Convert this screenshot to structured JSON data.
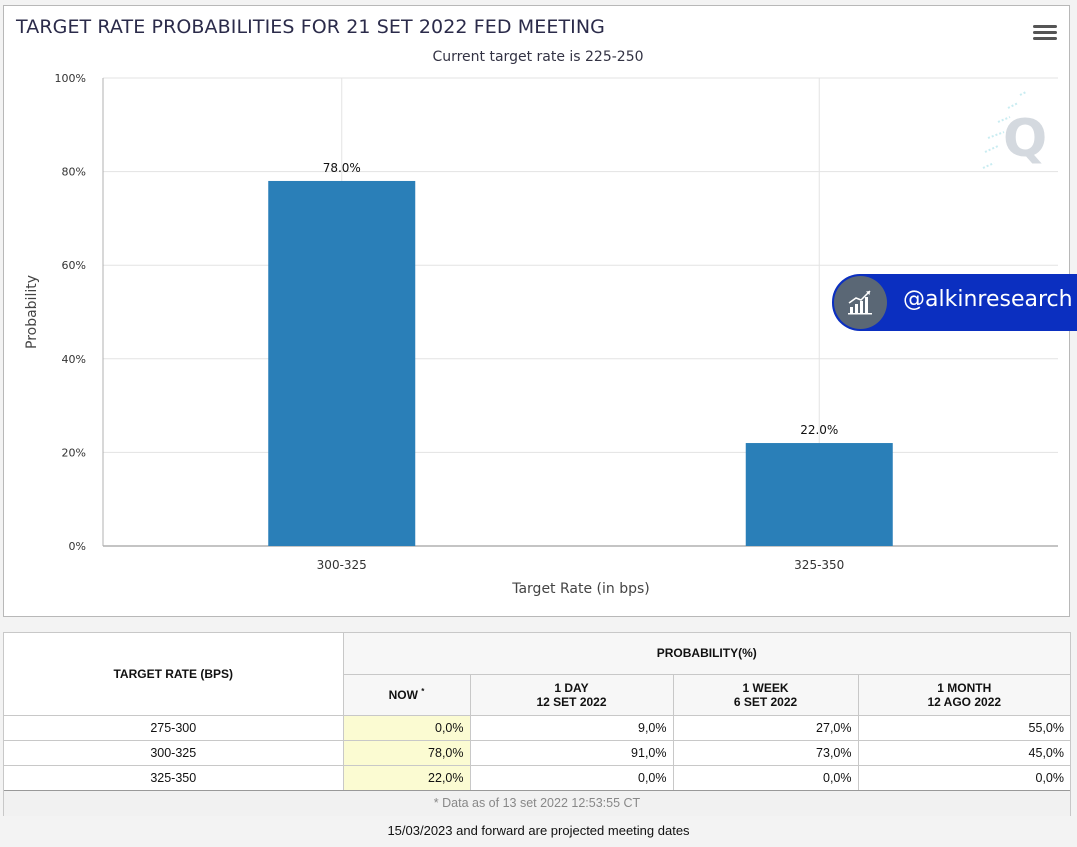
{
  "title": "TARGET RATE PROBABILITIES FOR 21 SET 2022 FED MEETING",
  "watermark": {
    "handle": "@alkinresearch",
    "logo_letter": "Q"
  },
  "chart_data": {
    "type": "bar",
    "title": "TARGET RATE PROBABILITIES FOR 21 SET 2022 FED MEETING",
    "subtitle": "Current target rate is 225-250",
    "categories": [
      "300-325",
      "325-350"
    ],
    "values": [
      78.0,
      22.0
    ],
    "data_labels": [
      "78.0%",
      "22.0%"
    ],
    "xlabel": "Target Rate (in bps)",
    "ylabel": "Probability",
    "ylim": [
      0,
      100
    ],
    "yticks": [
      "0%",
      "20%",
      "40%",
      "60%",
      "80%",
      "100%"
    ],
    "grid": true,
    "bar_color": "#2a7fb8"
  },
  "table": {
    "col_rate_header": "TARGET RATE (BPS)",
    "prob_header": "PROBABILITY(%)",
    "col_now": "NOW",
    "col_now_mark": "*",
    "col_day": "1 DAY",
    "col_day_date": "12 SET 2022",
    "col_week": "1 WEEK",
    "col_week_date": "6 SET 2022",
    "col_month": "1 MONTH",
    "col_month_date": "12 AGO 2022",
    "rows": [
      {
        "rate": "275-300",
        "now": "0,0%",
        "day": "9,0%",
        "week": "27,0%",
        "month": "55,0%"
      },
      {
        "rate": "300-325",
        "now": "78,0%",
        "day": "91,0%",
        "week": "73,0%",
        "month": "45,0%"
      },
      {
        "rate": "325-350",
        "now": "22,0%",
        "day": "0,0%",
        "week": "0,0%",
        "month": "0,0%"
      }
    ],
    "note": "* Data as of 13 set 2022 12:53:55 CT"
  },
  "footer": "15/03/2023 and forward are projected meeting dates"
}
